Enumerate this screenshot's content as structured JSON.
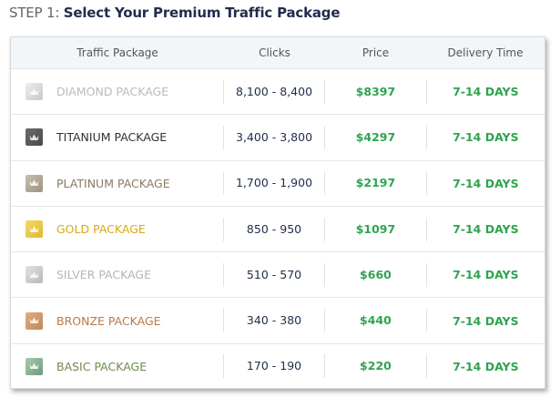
{
  "header": {
    "step": "STEP 1:",
    "title": "Select Your Premium Traffic Package"
  },
  "table": {
    "columns": [
      "Traffic Package",
      "Clicks",
      "Price",
      "Delivery Time"
    ],
    "rows": [
      [
        "DIAMOND PACKAGE",
        "8,100 - 8,400",
        "$8397",
        "7-14 DAYS"
      ],
      [
        "TITANIUM PACKAGE",
        "3,400 - 3,800",
        "$4297",
        "7-14 DAYS"
      ],
      [
        "PLATINUM PACKAGE",
        "1,700 - 1,900",
        "$2197",
        "7-14 DAYS"
      ],
      [
        "GOLD PACKAGE",
        "850 - 950",
        "$1097",
        "7-14 DAYS"
      ],
      [
        "SILVER PACKAGE",
        "510 - 570",
        "$660",
        "7-14 DAYS"
      ],
      [
        "BRONZE PACKAGE",
        "340 - 380",
        "$440",
        "7-14 DAYS"
      ],
      [
        "BASIC PACKAGE",
        "170 - 190",
        "$220",
        "7-14 DAYS"
      ]
    ]
  }
}
